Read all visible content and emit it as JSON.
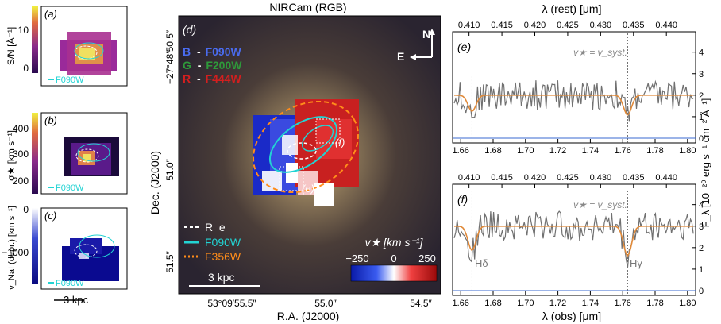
{
  "left_panels": {
    "a": {
      "tag": "(a)",
      "ylabel": "S/N [Å⁻¹]",
      "ticks": [
        "10",
        "0"
      ],
      "legend": "F090W"
    },
    "b": {
      "tag": "(b)",
      "ylabel": "σ★ [km s⁻¹]",
      "ticks": [
        "400",
        "300",
        "200"
      ],
      "legend": "F090W"
    },
    "c": {
      "tag": "(c)",
      "ylabel": "v_NaI (depr.) [km s⁻¹]",
      "ticks": [
        "0",
        "−1000"
      ],
      "legend": "F090W"
    },
    "scalebar": "3 kpc"
  },
  "center": {
    "title": "NIRCam (RGB)",
    "tag": "(d)",
    "compass_n": "N",
    "compass_e": "E",
    "rgb": [
      {
        "letter": "B",
        "filter": "F090W",
        "color": "#4a6cf0"
      },
      {
        "letter": "G",
        "filter": "F200W",
        "color": "#2e9a3a"
      },
      {
        "letter": "R",
        "filter": "F444W",
        "color": "#d21f1f"
      }
    ],
    "dec_label": "Dec. (J2000)",
    "ra_label": "R.A. (J2000)",
    "dec_ticks": [
      "−27°48′50.5″",
      "51.0″",
      "51.5″"
    ],
    "ra_ticks": [
      "53°09′55.5″",
      "55.0″",
      "54.5″"
    ],
    "legend": [
      {
        "label": "R_e",
        "color": "#ffffff",
        "style": "dash"
      },
      {
        "label": "F090W",
        "color": "#22d3d3",
        "style": "solid"
      },
      {
        "label": "F356W",
        "color": "#ff8c1a",
        "style": "dot"
      }
    ],
    "scalebar": "3 kpc",
    "cbar_title": "v★ [km s⁻¹]",
    "cbar_ticks": [
      "−250",
      "0",
      "250"
    ],
    "region_tags": [
      "(e)",
      "(f)"
    ]
  },
  "right": {
    "top_axis_label": "λ (rest) [μm]",
    "bottom_axis_label": "λ (obs) [μm]",
    "ylabel": "F_λ [10⁻²⁰ erg s⁻¹ cm⁻² Å⁻¹]",
    "rest_ticks": [
      "0.410",
      "0.415",
      "0.420",
      "0.425",
      "0.430",
      "0.435",
      "0.440"
    ],
    "obs_ticks": [
      "1.66",
      "1.68",
      "1.70",
      "1.72",
      "1.74",
      "1.76",
      "1.78",
      "1.80"
    ],
    "y_ticks": [
      "4",
      "3",
      "2",
      "1",
      "0"
    ],
    "systemic_label": "v★ = v_syst.",
    "lines": [
      "Hδ",
      "Hγ"
    ],
    "panel_e_tag": "(e)",
    "panel_f_tag": "(f)"
  },
  "chart_data": [
    {
      "type": "line",
      "panel": "(e)",
      "x_range": [
        1.655,
        1.805
      ],
      "ylim": [
        0,
        4.8
      ],
      "series": [
        {
          "values_note": ""
        }
      ],
      "continuum_level": 2.0,
      "absorption_centers": [
        1.667,
        1.763
      ]
    },
    {
      "type": "line",
      "panel": "(f)",
      "x_range": [
        1.655,
        1.805
      ],
      "ylim": [
        0,
        4.8
      ],
      "continuum_level": 3.0,
      "absorption_centers": [
        1.667,
        1.763
      ]
    }
  ]
}
